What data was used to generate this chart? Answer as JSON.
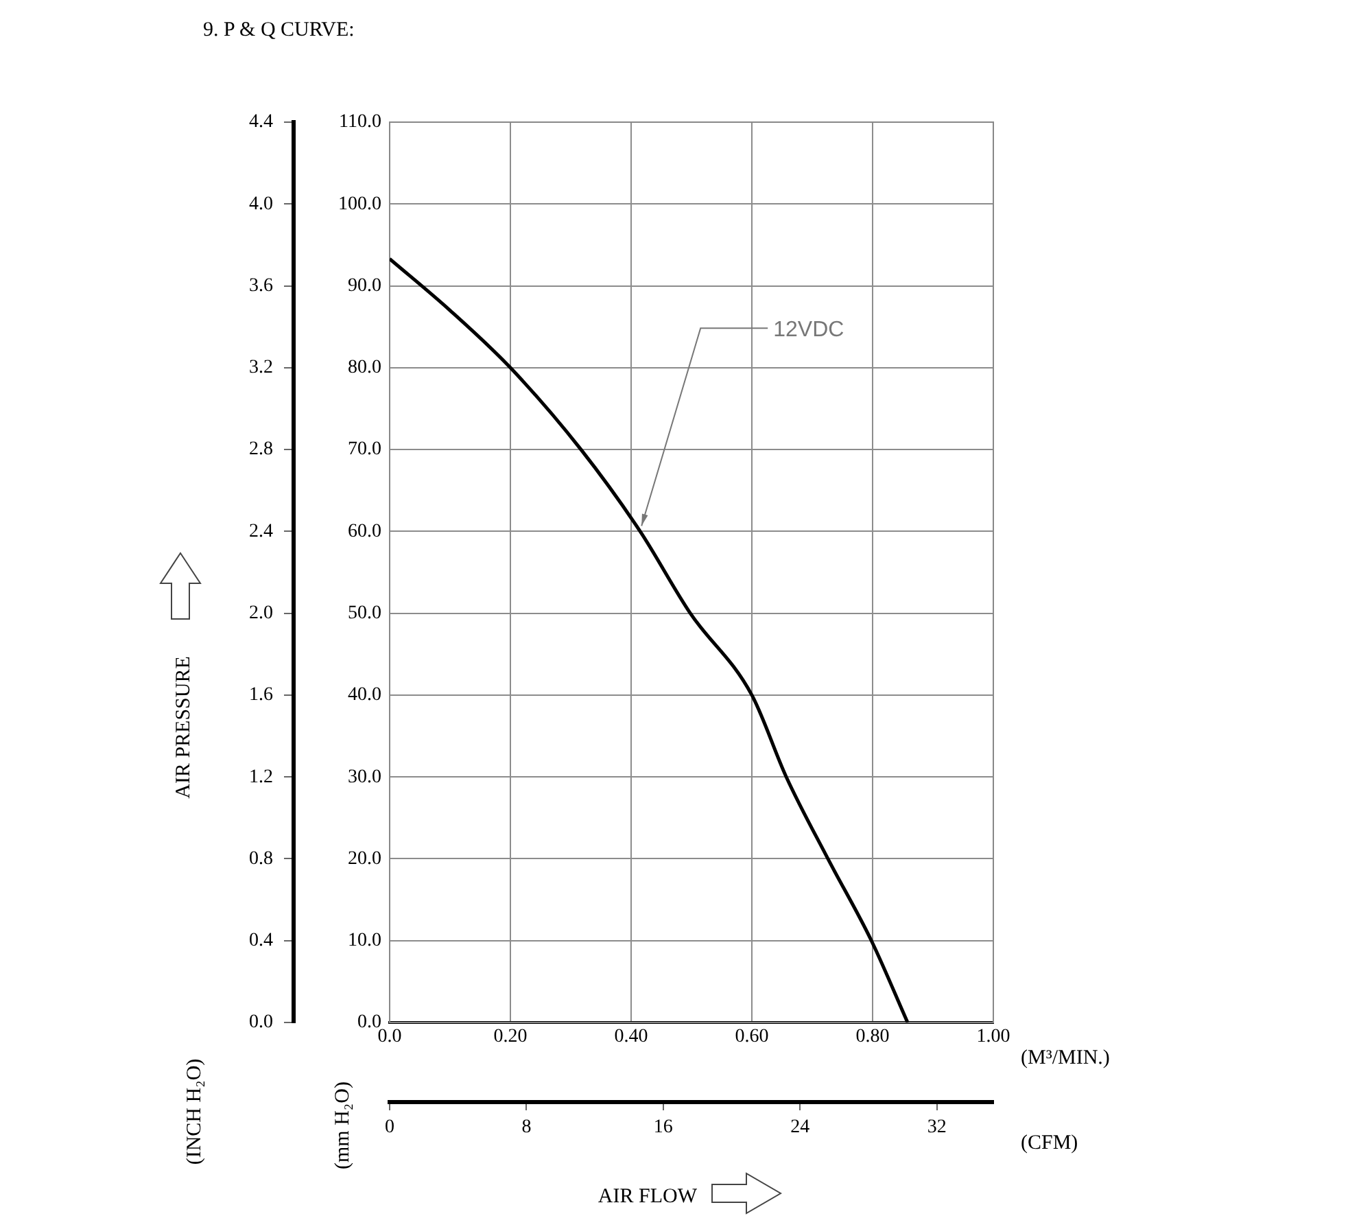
{
  "chart_data": {
    "type": "line",
    "title": "9. P & Q CURVE:",
    "xlabel": "(M³/MIN.)",
    "x2label": "(CFM)",
    "ylabel": "(mm H₂O)",
    "y2label": "(INCH H₂O)",
    "annotations": [
      {
        "text": "12VDC",
        "x": 0.415,
        "y": 60
      },
      "AIR PRESSURE",
      "AIR FLOW"
    ],
    "x": [
      0,
      0.1,
      0.2,
      0.317,
      0.415,
      0.498,
      0.6,
      0.657,
      0.726,
      0.798,
      0.858
    ],
    "series": [
      {
        "color": "#000000",
        "values": [
          93.3,
          87.0,
          80.0,
          70,
          60,
          50,
          40,
          30,
          20,
          10,
          0
        ]
      }
    ],
    "xlim": [
      0,
      1
    ],
    "xticks": [
      {
        "value": 0,
        "label": "0.0"
      },
      {
        "value": 0.2,
        "label": "0.20"
      },
      {
        "value": 0.4,
        "label": "0.40"
      },
      {
        "value": 0.6,
        "label": "0.60"
      },
      {
        "value": 0.8,
        "label": "0.80"
      },
      {
        "value": 1,
        "label": "1.00"
      }
    ],
    "ylim": [
      0,
      110
    ],
    "yticks": [
      {
        "value": 0,
        "label": "0.0"
      },
      {
        "value": 10,
        "label": "10.0"
      },
      {
        "value": 20,
        "label": "20.0"
      },
      {
        "value": 30,
        "label": "30.0"
      },
      {
        "value": 40,
        "label": "40.0"
      },
      {
        "value": 50,
        "label": "50.0"
      },
      {
        "value": 60,
        "label": "60.0"
      },
      {
        "value": 70,
        "label": "70.0"
      },
      {
        "value": 80,
        "label": "80.0"
      },
      {
        "value": 90,
        "label": "90.0"
      },
      {
        "value": 100,
        "label": "100.0"
      },
      {
        "value": 110,
        "label": "110.0"
      }
    ],
    "y2lim": [
      0,
      4.4
    ],
    "y2ticks": [
      {
        "value": 0,
        "label": "0.0"
      },
      {
        "value": 0.4,
        "label": "0.4"
      },
      {
        "value": 0.8,
        "label": "0.8"
      },
      {
        "value": 1.2,
        "label": "1.2"
      },
      {
        "value": 1.6,
        "label": "1.6"
      },
      {
        "value": 2,
        "label": "2.0"
      },
      {
        "value": 2.4,
        "label": "2.4"
      },
      {
        "value": 2.8,
        "label": "2.8"
      },
      {
        "value": 3.2,
        "label": "3.2"
      },
      {
        "value": 3.6,
        "label": "3.6"
      },
      {
        "value": 4,
        "label": "4.0"
      },
      {
        "value": 4.4,
        "label": "4.4"
      }
    ],
    "x2lim": [
      0,
      35.3
    ],
    "x2ticks": [
      0,
      8,
      16,
      24,
      32
    ],
    "grid": true,
    "marker": "none",
    "line_style": "solid"
  }
}
